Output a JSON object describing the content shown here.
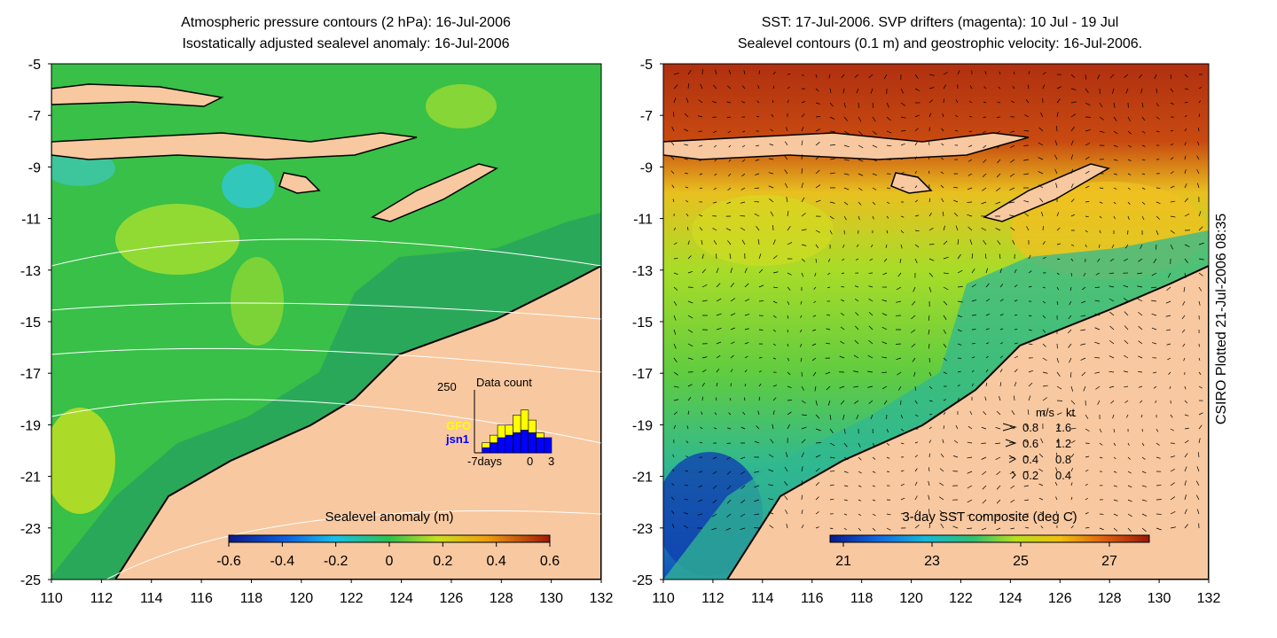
{
  "left_panel": {
    "title_line1": "Atmospheric pressure contours (2 hPa): 16-Jul-2006",
    "title_line2": "Isostatically adjusted sealevel anomaly: 16-Jul-2006",
    "colorbar_label": "Sealevel anomaly (m)",
    "colorbar_ticks": [
      "-0.6",
      "-0.4",
      "-0.2",
      "0",
      "0.2",
      "0.4",
      "0.6"
    ],
    "inset": {
      "max_label": "250",
      "title": "Data count",
      "series_gfo": "GFO",
      "series_jsn1": "jsn1",
      "axis_left": "-7days",
      "axis_zero": "0",
      "axis_right": "3",
      "gfo_color": "#ffff00",
      "jsn1_color": "#0000ff",
      "gfo_counts": [
        0,
        40,
        70,
        110,
        110,
        150,
        170,
        130,
        80,
        0
      ],
      "jsn1_counts": [
        0,
        20,
        40,
        60,
        70,
        80,
        90,
        80,
        60,
        60
      ]
    }
  },
  "right_panel": {
    "title_line1": "SST: 17-Jul-2006. SVP drifters (magenta): 10 Jul - 19 Jul",
    "title_line2": "Sealevel contours (0.1 m) and geostrophic velocity: 16-Jul-2006.",
    "colorbar_label": "3-day SST composite (deg C)",
    "colorbar_ticks": [
      "21",
      "23",
      "25",
      "27"
    ],
    "velocity_legend": {
      "header_ms": "m/s",
      "header_kt": "kt",
      "rows": [
        {
          "ms": "0.8",
          "kt": "1.6"
        },
        {
          "ms": "0.6",
          "kt": "1.2"
        },
        {
          "ms": "0.4",
          "kt": "0.8"
        },
        {
          "ms": "0.2",
          "kt": "0.4"
        }
      ]
    }
  },
  "axes": {
    "x_ticks": [
      "110",
      "112",
      "114",
      "116",
      "118",
      "120",
      "122",
      "124",
      "126",
      "128",
      "130",
      "132"
    ],
    "y_ticks": [
      "-5",
      "-7",
      "-9",
      "-11",
      "-13",
      "-15",
      "-17",
      "-19",
      "-21",
      "-23",
      "-25"
    ]
  },
  "credit": "CSIRO Plotted 21-Jul-2006 08:35",
  "colors": {
    "land": "#f8c8a0",
    "sla_base": "#38c048",
    "sla_shelf": "#2aa85a",
    "sst_north": "#b83a10",
    "sst_mid": "#a8dc28",
    "sst_shelf": "#30c080"
  }
}
